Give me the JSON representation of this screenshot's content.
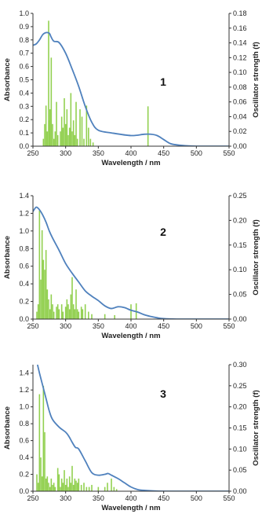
{
  "colors": {
    "curve": "#4f81bd",
    "bars": "#92d050",
    "axis": "#333333"
  },
  "chart_data": [
    {
      "type": "line",
      "label": "1",
      "xlabel": "Wavelength / nm",
      "ylabel": "Absorbance",
      "y2label": "Oscillator strength (f)",
      "xlim": [
        250,
        550
      ],
      "ylim": [
        0,
        1.0
      ],
      "y2lim": [
        0,
        0.18
      ],
      "xticks": [
        "250",
        "300",
        "350",
        "400",
        "450",
        "500",
        "550"
      ],
      "yticks": [
        "0.0",
        "0.1",
        "0.2",
        "0.3",
        "0.4",
        "0.5",
        "0.6",
        "0.7",
        "0.8",
        "0.9",
        "1.0"
      ],
      "y2ticks": [
        "0.00",
        "0.02",
        "0.04",
        "0.06",
        "0.08",
        "0.10",
        "0.12",
        "0.14",
        "0.16",
        "0.18"
      ],
      "series": [
        {
          "type": "line",
          "axis": "left",
          "x": [
            250,
            255,
            260,
            265,
            270,
            275,
            278,
            282,
            290,
            300,
            310,
            320,
            330,
            340,
            350,
            370,
            400,
            420,
            430,
            440,
            450,
            460,
            470,
            480,
            500,
            550
          ],
          "y": [
            0.76,
            0.77,
            0.8,
            0.84,
            0.855,
            0.85,
            0.82,
            0.79,
            0.78,
            0.7,
            0.58,
            0.45,
            0.3,
            0.18,
            0.12,
            0.1,
            0.08,
            0.09,
            0.09,
            0.08,
            0.05,
            0.02,
            0.01,
            0.005,
            0,
            0
          ]
        },
        {
          "type": "bar",
          "axis": "right",
          "x": [
            266,
            268,
            270,
            272,
            274,
            275,
            276,
            278,
            280,
            282,
            284,
            286,
            288,
            292,
            294,
            296,
            298,
            300,
            302,
            304,
            306,
            308,
            310,
            312,
            314,
            316,
            318,
            322,
            325,
            328,
            332,
            335,
            338,
            342,
            426
          ],
          "y": [
            0.01,
            0.03,
            0.055,
            0.02,
            0.17,
            0.035,
            0.05,
            0.12,
            0.03,
            0.01,
            0.02,
            0.06,
            0.015,
            0.02,
            0.04,
            0.025,
            0.065,
            0.03,
            0.05,
            0.015,
            0.025,
            0.072,
            0.02,
            0.035,
            0.015,
            0.06,
            0.01,
            0.05,
            0.04,
            0.01,
            0.055,
            0.025,
            0.01,
            0.005,
            0.054
          ]
        }
      ]
    },
    {
      "type": "line",
      "label": "2",
      "xlabel": "Wavelength / nm",
      "ylabel": "Absorbance",
      "y2label": "Oscillator strength (f)",
      "xlim": [
        250,
        550
      ],
      "ylim": [
        0,
        1.4
      ],
      "y2lim": [
        0,
        0.25
      ],
      "xticks": [
        "250",
        "300",
        "350",
        "400",
        "450",
        "500",
        "550"
      ],
      "yticks": [
        "0.0",
        "0.2",
        "0.4",
        "0.6",
        "0.8",
        "1.0",
        "1.2",
        "1.4"
      ],
      "y2ticks": [
        "0.00",
        "0.05",
        "0.10",
        "0.15",
        "0.20",
        "0.25"
      ],
      "series": [
        {
          "type": "line",
          "axis": "left",
          "x": [
            250,
            255,
            260,
            265,
            270,
            275,
            280,
            290,
            300,
            310,
            320,
            330,
            340,
            350,
            360,
            370,
            380,
            390,
            400,
            410,
            420,
            430,
            440,
            450,
            470,
            500,
            550
          ],
          "y": [
            1.22,
            1.27,
            1.24,
            1.18,
            1.1,
            1.0,
            0.92,
            0.78,
            0.63,
            0.52,
            0.42,
            0.32,
            0.26,
            0.21,
            0.15,
            0.12,
            0.14,
            0.13,
            0.1,
            0.08,
            0.05,
            0.03,
            0.015,
            0.005,
            0,
            0,
            0
          ]
        },
        {
          "type": "bar",
          "axis": "right",
          "x": [
            256,
            258,
            260,
            262,
            264,
            266,
            268,
            270,
            272,
            274,
            276,
            278,
            280,
            282,
            286,
            288,
            290,
            294,
            296,
            300,
            302,
            304,
            306,
            308,
            310,
            312,
            314,
            316,
            318,
            320,
            324,
            326,
            330,
            335,
            340,
            360,
            375,
            400,
            408
          ],
          "y": [
            0.015,
            0.03,
            0.22,
            0.08,
            0.18,
            0.12,
            0.1,
            0.14,
            0.06,
            0.04,
            0.02,
            0.05,
            0.03,
            0.015,
            0.025,
            0.03,
            0.02,
            0.03,
            0.015,
            0.025,
            0.04,
            0.03,
            0.02,
            0.05,
            0.085,
            0.03,
            0.02,
            0.06,
            0.02,
            0.015,
            0.025,
            0.02,
            0.03,
            0.015,
            0.01,
            0.01,
            0.008,
            0.03,
            0.032
          ]
        }
      ]
    },
    {
      "type": "line",
      "label": "3",
      "xlabel": "Wavelength / nm",
      "ylabel": "Absorbance",
      "y2label": "Oscillator strength (f)",
      "xlim": [
        250,
        550
      ],
      "ylim": [
        0,
        1.5
      ],
      "y2lim": [
        0,
        0.3
      ],
      "xticks": [
        "250",
        "300",
        "350",
        "400",
        "450",
        "500",
        "550"
      ],
      "yticks": [
        "0.0",
        "0.2",
        "0.4",
        "0.6",
        "0.8",
        "1.0",
        "1.2",
        "1.4"
      ],
      "y2ticks": [
        "0.00",
        "0.05",
        "0.10",
        "0.15",
        "0.20",
        "0.25",
        "0.30"
      ],
      "series": [
        {
          "type": "line",
          "axis": "left",
          "x": [
            257,
            260,
            265,
            270,
            275,
            280,
            290,
            300,
            305,
            310,
            315,
            320,
            330,
            340,
            350,
            360,
            365,
            370,
            380,
            390,
            400,
            410,
            420,
            450,
            550
          ],
          "y": [
            1.5,
            1.4,
            1.25,
            1.1,
            0.95,
            0.85,
            0.76,
            0.7,
            0.65,
            0.58,
            0.52,
            0.5,
            0.36,
            0.22,
            0.19,
            0.2,
            0.21,
            0.19,
            0.15,
            0.1,
            0.05,
            0.02,
            0.01,
            0,
            0
          ]
        },
        {
          "type": "bar",
          "axis": "right",
          "x": [
            256,
            258,
            260,
            262,
            264,
            266,
            268,
            270,
            272,
            274,
            276,
            278,
            280,
            282,
            284,
            288,
            290,
            292,
            294,
            296,
            298,
            300,
            302,
            304,
            306,
            308,
            310,
            312,
            314,
            316,
            318,
            320,
            324,
            328,
            332,
            336,
            340,
            350,
            360,
            364,
            370,
            374,
            378
          ],
          "y": [
            0.04,
            0.02,
            0.23,
            0.08,
            0.035,
            0.25,
            0.14,
            0.03,
            0.035,
            0.02,
            0.01,
            0.03,
            0.015,
            0.02,
            0.01,
            0.055,
            0.04,
            0.01,
            0.03,
            0.02,
            0.05,
            0.015,
            0.03,
            0.01,
            0.035,
            0.02,
            0.06,
            0.015,
            0.03,
            0.025,
            0.02,
            0.03,
            0.015,
            0.02,
            0.01,
            0.01,
            0.015,
            0.01,
            0.01,
            0.02,
            0.03,
            0.01,
            0.005
          ]
        }
      ]
    }
  ]
}
